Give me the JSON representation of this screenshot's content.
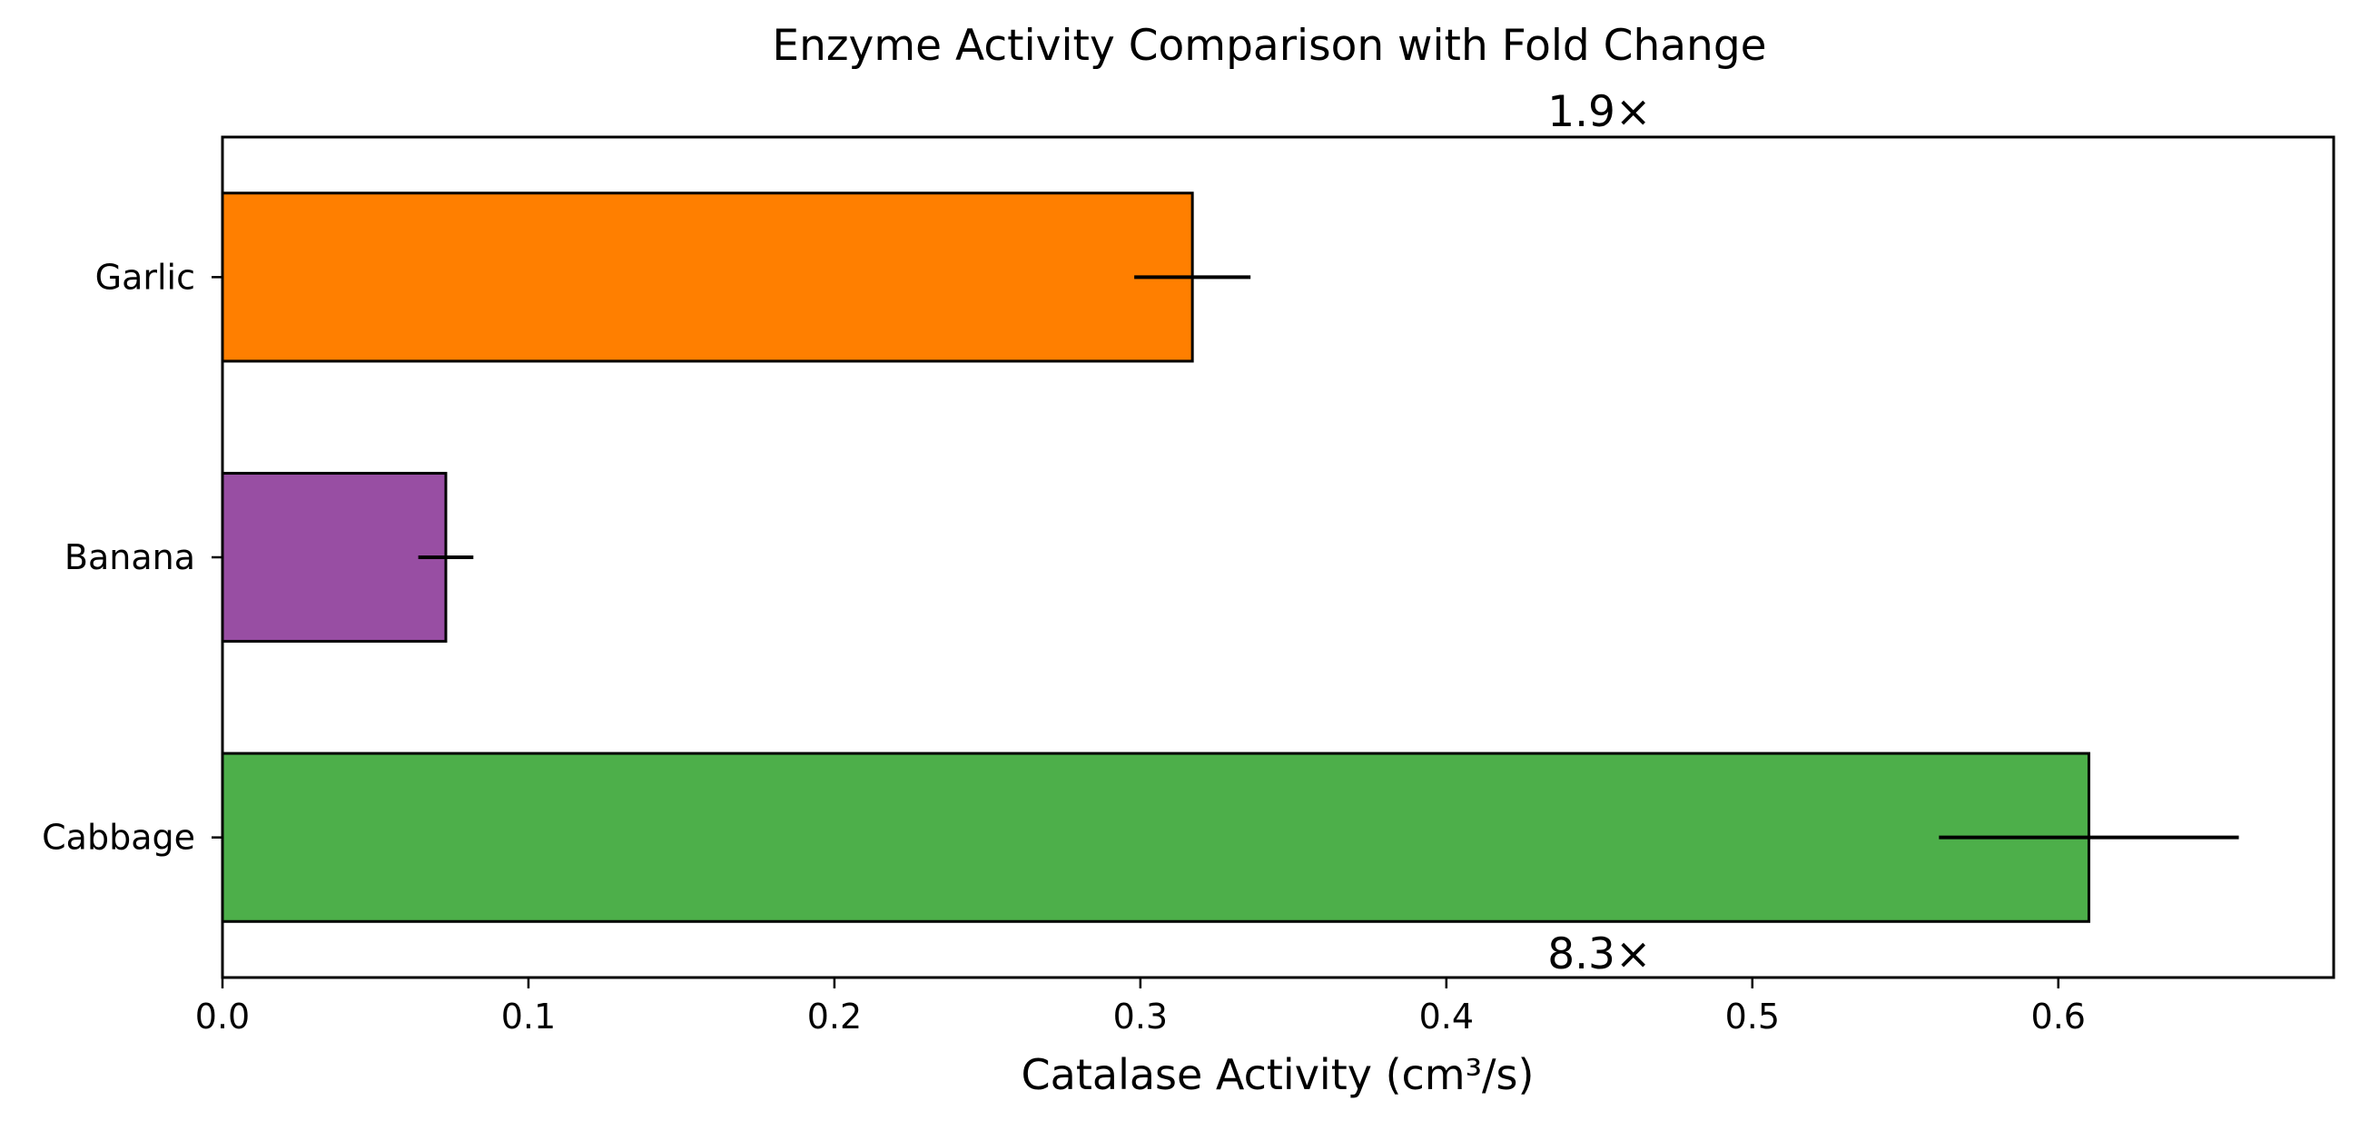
{
  "chart_data": {
    "type": "bar",
    "orientation": "horizontal",
    "title": "Enzyme Activity Comparison with Fold Change",
    "xlabel": "Catalase Activity (cm³/s)",
    "ylabel": "",
    "xlim": [
      0,
      0.69
    ],
    "xticks": [
      0.0,
      0.1,
      0.2,
      0.3,
      0.4,
      0.5,
      0.6
    ],
    "xtick_labels": [
      "0.0",
      "0.1",
      "0.2",
      "0.3",
      "0.4",
      "0.5",
      "0.6"
    ],
    "grid": false,
    "categories": [
      "Cabbage",
      "Banana",
      "Garlic"
    ],
    "values": [
      0.61,
      0.073,
      0.317
    ],
    "errors": [
      0.049,
      0.009,
      0.019
    ],
    "colors": [
      "#4daf4a",
      "#984ea3",
      "#ff7f00"
    ],
    "annotations": [
      {
        "text": "1.9×",
        "x": 0.45,
        "position": "above-top"
      },
      {
        "text": "8.3×",
        "x": 0.45,
        "position": "below-bottom"
      }
    ]
  }
}
